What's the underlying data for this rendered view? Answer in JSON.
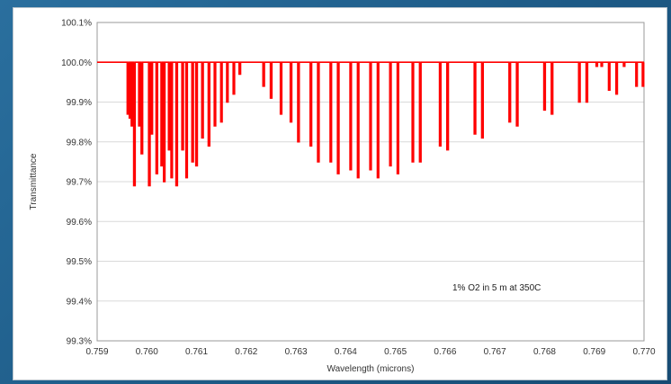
{
  "chart_data": {
    "type": "line",
    "title": "",
    "xlabel": "Wavelength (microns)",
    "ylabel": "Transmittance",
    "xlim": [
      0.759,
      0.77
    ],
    "ylim": [
      99.3,
      100.1
    ],
    "x_ticks": [
      "0.759",
      "0.760",
      "0.761",
      "0.762",
      "0.763",
      "0.764",
      "0.765",
      "0.766",
      "0.767",
      "0.768",
      "0.769",
      "0.770"
    ],
    "y_ticks": [
      "100.1%",
      "100.0%",
      "99.9%",
      "99.8%",
      "99.7%",
      "99.6%",
      "99.5%",
      "99.4%",
      "99.3%"
    ],
    "grid": "horizontal",
    "annotation": "1% O2 in 5 m at 350C",
    "line_color": "#ff0000",
    "baseline": 100.0,
    "absorption_lines": [
      {
        "x": 0.75962,
        "y": 99.87
      },
      {
        "x": 0.75966,
        "y": 99.86
      },
      {
        "x": 0.7597,
        "y": 99.84
      },
      {
        "x": 0.75975,
        "y": 99.69
      },
      {
        "x": 0.75985,
        "y": 99.84
      },
      {
        "x": 0.7599,
        "y": 99.77
      },
      {
        "x": 0.76005,
        "y": 99.69
      },
      {
        "x": 0.7601,
        "y": 99.82
      },
      {
        "x": 0.7602,
        "y": 99.72
      },
      {
        "x": 0.7603,
        "y": 99.74
      },
      {
        "x": 0.76035,
        "y": 99.7
      },
      {
        "x": 0.76045,
        "y": 99.78
      },
      {
        "x": 0.7605,
        "y": 99.71
      },
      {
        "x": 0.7606,
        "y": 99.69
      },
      {
        "x": 0.76072,
        "y": 99.78
      },
      {
        "x": 0.7608,
        "y": 99.71
      },
      {
        "x": 0.76092,
        "y": 99.75
      },
      {
        "x": 0.761,
        "y": 99.74
      },
      {
        "x": 0.76112,
        "y": 99.81
      },
      {
        "x": 0.76125,
        "y": 99.79
      },
      {
        "x": 0.76137,
        "y": 99.84
      },
      {
        "x": 0.7615,
        "y": 99.85
      },
      {
        "x": 0.76162,
        "y": 99.9
      },
      {
        "x": 0.76175,
        "y": 99.92
      },
      {
        "x": 0.76187,
        "y": 99.97
      },
      {
        "x": 0.76235,
        "y": 99.94
      },
      {
        "x": 0.7625,
        "y": 99.91
      },
      {
        "x": 0.7627,
        "y": 99.87
      },
      {
        "x": 0.7629,
        "y": 99.85
      },
      {
        "x": 0.76305,
        "y": 99.8
      },
      {
        "x": 0.7633,
        "y": 99.79
      },
      {
        "x": 0.76345,
        "y": 99.75
      },
      {
        "x": 0.7637,
        "y": 99.75
      },
      {
        "x": 0.76385,
        "y": 99.72
      },
      {
        "x": 0.7641,
        "y": 99.73
      },
      {
        "x": 0.76425,
        "y": 99.71
      },
      {
        "x": 0.7645,
        "y": 99.73
      },
      {
        "x": 0.76465,
        "y": 99.71
      },
      {
        "x": 0.7649,
        "y": 99.74
      },
      {
        "x": 0.76505,
        "y": 99.72
      },
      {
        "x": 0.76535,
        "y": 99.75
      },
      {
        "x": 0.7655,
        "y": 99.75
      },
      {
        "x": 0.7659,
        "y": 99.79
      },
      {
        "x": 0.76605,
        "y": 99.78
      },
      {
        "x": 0.7666,
        "y": 99.82
      },
      {
        "x": 0.76675,
        "y": 99.81
      },
      {
        "x": 0.7673,
        "y": 99.85
      },
      {
        "x": 0.76745,
        "y": 99.84
      },
      {
        "x": 0.768,
        "y": 99.88
      },
      {
        "x": 0.76815,
        "y": 99.87
      },
      {
        "x": 0.7687,
        "y": 99.9
      },
      {
        "x": 0.76885,
        "y": 99.9
      },
      {
        "x": 0.76905,
        "y": 99.99
      },
      {
        "x": 0.76915,
        "y": 99.99
      },
      {
        "x": 0.7693,
        "y": 99.93
      },
      {
        "x": 0.76945,
        "y": 99.92
      },
      {
        "x": 0.7696,
        "y": 99.99
      },
      {
        "x": 0.76985,
        "y": 99.94
      },
      {
        "x": 0.76998,
        "y": 99.94
      }
    ]
  }
}
